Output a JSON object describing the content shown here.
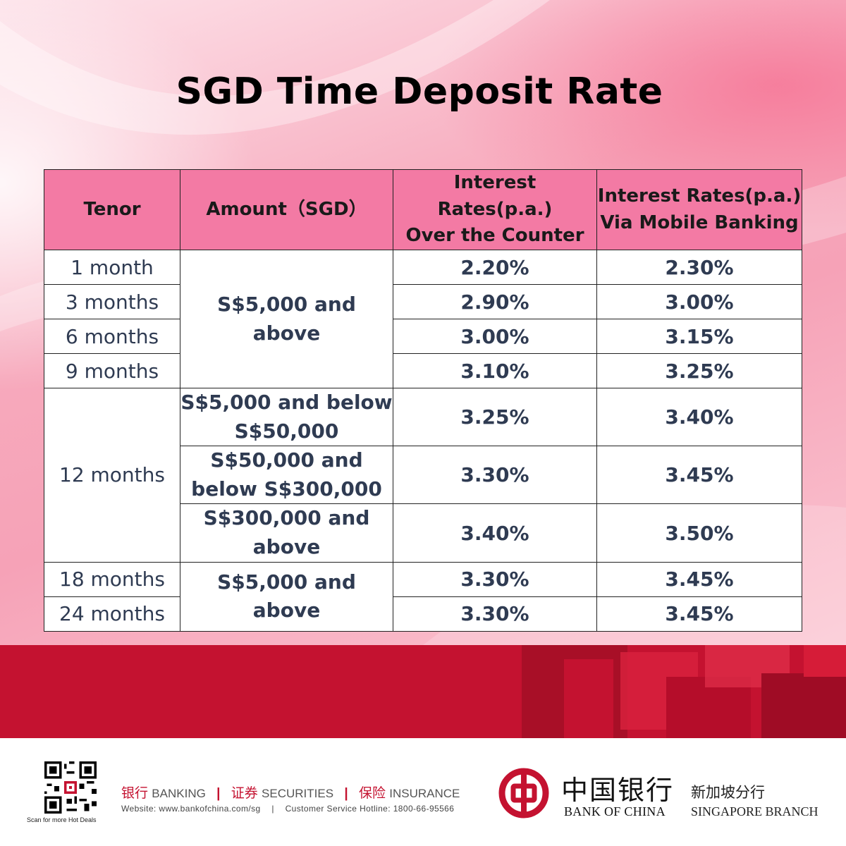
{
  "title": "SGD Time Deposit Rate",
  "table": {
    "headers": {
      "tenor": "Tenor",
      "amount": "Amount（SGD）",
      "counter_line1": "Interest Rates(p.a.)",
      "counter_line2": "Over the Counter",
      "mobile_line1": "Interest Rates(p.a.)",
      "mobile_line2": "Via Mobile Banking"
    },
    "rows": [
      {
        "tenor": "1 month",
        "amount": "S$5,000 and above",
        "counter": "2.20%",
        "mobile": "2.30%"
      },
      {
        "tenor": "3 months",
        "counter": "2.90%",
        "mobile": "3.00%"
      },
      {
        "tenor": "6 months",
        "counter": "3.00%",
        "mobile": "3.15%"
      },
      {
        "tenor": "9 months",
        "counter": "3.10%",
        "mobile": "3.25%"
      },
      {
        "tenor": "12 months",
        "amount_line1": "S$5,000 and below",
        "amount_line2": "S$50,000",
        "counter": "3.25%",
        "mobile": "3.40%"
      },
      {
        "amount_line1": "S$50,000 and",
        "amount_line2": "below S$300,000",
        "counter": "3.30%",
        "mobile": "3.45%"
      },
      {
        "amount_line1": "S$300,000 and",
        "amount_line2": "above",
        "counter": "3.40%",
        "mobile": "3.50%"
      },
      {
        "tenor": "18 months",
        "amount": "S$5,000 and above",
        "counter": "3.30%",
        "mobile": "3.45%"
      },
      {
        "tenor": "24 months",
        "counter": "3.30%",
        "mobile": "3.45%"
      }
    ]
  },
  "footer": {
    "qr_caption": "Scan for more Hot Deals",
    "banking_cn": "银行",
    "banking_en": "BANKING",
    "securities_cn": "证券",
    "securities_en": "SECURITIES",
    "insurance_cn": "保险",
    "insurance_en": "INSURANCE",
    "separator": "|",
    "website": "Website: www.bankofchina.com/sg",
    "hotline": "Customer Service Hotline: 1800-66-95566",
    "bank_name_cn": "中国银行",
    "branch_cn": "新加坡分行",
    "bank_name_en": "BANK OF CHINA",
    "branch_en": "SINGAPORE BRANCH"
  },
  "colors": {
    "header_pink": "#f37aa4",
    "brand_red": "#c41230",
    "text_navy": "#2f3b52"
  },
  "icons": [
    "qr-code-icon",
    "bank-of-china-logo-icon"
  ]
}
